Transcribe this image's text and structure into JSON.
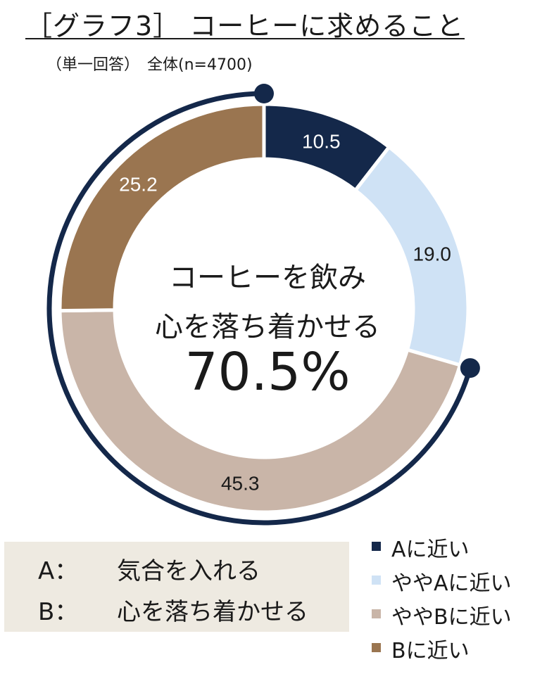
{
  "header": {
    "title": "［グラフ3］ コーヒーに求めること",
    "subtitle": "（単一回答）　全体(n=4700)"
  },
  "center": {
    "line1": "コーヒーを飲み",
    "line2": "心を落ち着かせる",
    "value": "70.5%"
  },
  "ab_definitions": [
    {
      "key": "A：",
      "text": "気合を入れる"
    },
    {
      "key": "B：",
      "text": "心を落ち着かせる"
    }
  ],
  "chart_data": {
    "type": "pie",
    "variant": "donut",
    "categories": [
      "Aに近い",
      "ややAに近い",
      "ややBに近い",
      "Bに近い"
    ],
    "values": [
      10.5,
      19.0,
      45.3,
      25.2
    ],
    "data_labels": [
      "10.5",
      "19.0",
      "45.3",
      "25.2"
    ],
    "colors": [
      "#14284a",
      "#cfe2f5",
      "#c9b5a8",
      "#9a7550"
    ],
    "label_colors": [
      "#ffffff",
      "#1a1a1a",
      "#1a1a1a",
      "#ffffff"
    ],
    "legend_position": "bottom-right",
    "highlight_arc": {
      "from_category": "ややBに近い",
      "to_category": "Bに近い",
      "total": 70.5,
      "color": "#14284a"
    }
  }
}
